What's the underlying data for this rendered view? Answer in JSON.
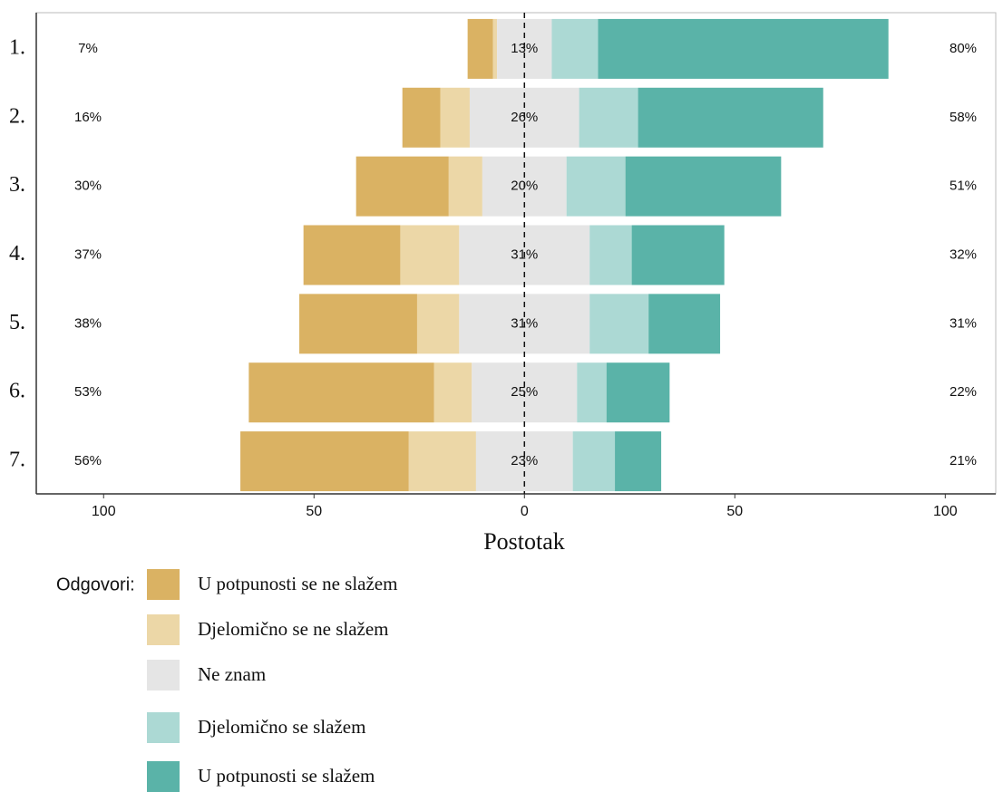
{
  "chart_data": {
    "type": "diverging_bar",
    "categories": [
      "1.",
      "2.",
      "3.",
      "4.",
      "5.",
      "6.",
      "7."
    ],
    "series": [
      {
        "name": "U potpunosti se ne slažem",
        "color": "#dab263",
        "side": "left",
        "values": [
          6,
          9,
          22,
          23,
          28,
          44,
          40
        ]
      },
      {
        "name": "Djelomično se ne slažem",
        "color": "#ecd7a7",
        "side": "left",
        "values": [
          1,
          7,
          8,
          14,
          10,
          9,
          16
        ]
      },
      {
        "name": "Ne znam",
        "color": "#e5e5e5",
        "side": "center",
        "values": [
          13,
          26,
          20,
          31,
          31,
          25,
          23
        ],
        "value_labels": [
          "13%",
          "26%",
          "20%",
          "31%",
          "31%",
          "25%",
          "23%"
        ]
      },
      {
        "name": "Djelomično se slažem",
        "color": "#acd9d4",
        "side": "right",
        "values": [
          11,
          14,
          14,
          10,
          14,
          7,
          10
        ]
      },
      {
        "name": "U potpunosti se slažem",
        "color": "#5ab3a8",
        "side": "right",
        "values": [
          69,
          44,
          37,
          22,
          17,
          15,
          11
        ]
      }
    ],
    "left_labels": [
      "7%",
      "16%",
      "30%",
      "37%",
      "38%",
      "53%",
      "56%"
    ],
    "right_labels": [
      "80%",
      "58%",
      "51%",
      "32%",
      "31%",
      "22%",
      "21%"
    ],
    "xlabel": "Postotak",
    "legend_title": "Odgovori:",
    "xlim": [
      -116,
      112
    ],
    "xticks": [
      {
        "value": -100,
        "label": "100"
      },
      {
        "value": -50,
        "label": "50"
      },
      0,
      50,
      100
    ]
  }
}
